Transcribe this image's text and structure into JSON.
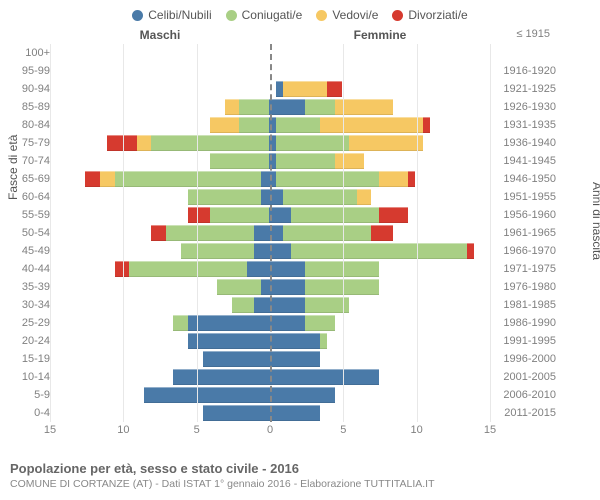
{
  "legend": [
    {
      "label": "Celibi/Nubili",
      "color": "#4a7aa8"
    },
    {
      "label": "Coniugati/e",
      "color": "#a9cf85"
    },
    {
      "label": "Vedovi/e",
      "color": "#f6c863"
    },
    {
      "label": "Divorziati/e",
      "color": "#d63a2f"
    }
  ],
  "header_male": "Maschi",
  "header_female": "Femmine",
  "header_birth_first": "≤ 1915",
  "y_left_title": "Fasce di età",
  "y_right_title": "Anni di nascita",
  "x_ticks": [
    15,
    10,
    5,
    0,
    5,
    10,
    15
  ],
  "xmax": 15,
  "footer_title": "Popolazione per età, sesso e stato civile - 2016",
  "footer_sub": "COMUNE DI CORTANZE (AT) - Dati ISTAT 1° gennaio 2016 - Elaborazione TUTTITALIA.IT",
  "rows": [
    {
      "age": "100+",
      "birth": "≤ 1915",
      "m": [
        0,
        0,
        0,
        0
      ],
      "f": [
        0,
        0,
        0,
        0
      ]
    },
    {
      "age": "95-99",
      "birth": "1916-1920",
      "m": [
        0,
        0,
        0,
        0
      ],
      "f": [
        0,
        0,
        0,
        0
      ]
    },
    {
      "age": "90-94",
      "birth": "1921-1925",
      "m": [
        0,
        0,
        0,
        0
      ],
      "f": [
        0.5,
        0,
        3,
        1
      ]
    },
    {
      "age": "85-89",
      "birth": "1926-1930",
      "m": [
        0.5,
        2,
        1,
        0
      ],
      "f": [
        2,
        2,
        4,
        0
      ]
    },
    {
      "age": "80-84",
      "birth": "1931-1935",
      "m": [
        0.5,
        2,
        2,
        0
      ],
      "f": [
        0,
        3,
        7,
        0.5
      ]
    },
    {
      "age": "75-79",
      "birth": "1936-1940",
      "m": [
        0.5,
        8,
        1,
        2
      ],
      "f": [
        0,
        5,
        5,
        0
      ]
    },
    {
      "age": "70-74",
      "birth": "1941-1945",
      "m": [
        0.5,
        4,
        0,
        0
      ],
      "f": [
        0,
        4,
        2,
        0
      ]
    },
    {
      "age": "65-69",
      "birth": "1946-1950",
      "m": [
        1,
        10,
        1,
        1
      ],
      "f": [
        0,
        7,
        2,
        0.5
      ]
    },
    {
      "age": "60-64",
      "birth": "1951-1955",
      "m": [
        1,
        5,
        0,
        0
      ],
      "f": [
        0.5,
        5,
        1,
        0
      ]
    },
    {
      "age": "55-59",
      "birth": "1956-1960",
      "m": [
        0.5,
        4,
        0,
        1.5
      ],
      "f": [
        1,
        6,
        0,
        2
      ]
    },
    {
      "age": "50-54",
      "birth": "1961-1965",
      "m": [
        1.5,
        6,
        0,
        1
      ],
      "f": [
        0.5,
        6,
        0,
        1.5
      ]
    },
    {
      "age": "45-49",
      "birth": "1966-1970",
      "m": [
        1.5,
        5,
        0,
        0
      ],
      "f": [
        1,
        12,
        0,
        0.5
      ]
    },
    {
      "age": "40-44",
      "birth": "1971-1975",
      "m": [
        2,
        8,
        0,
        1
      ],
      "f": [
        2,
        5,
        0,
        0
      ]
    },
    {
      "age": "35-39",
      "birth": "1976-1980",
      "m": [
        1,
        3,
        0,
        0
      ],
      "f": [
        2,
        5,
        0,
        0
      ]
    },
    {
      "age": "30-34",
      "birth": "1981-1985",
      "m": [
        1.5,
        1.5,
        0,
        0
      ],
      "f": [
        2,
        3,
        0,
        0
      ]
    },
    {
      "age": "25-29",
      "birth": "1986-1990",
      "m": [
        6,
        1,
        0,
        0
      ],
      "f": [
        2,
        2,
        0,
        0
      ]
    },
    {
      "age": "20-24",
      "birth": "1991-1995",
      "m": [
        6,
        0,
        0,
        0
      ],
      "f": [
        3,
        0.5,
        0,
        0
      ]
    },
    {
      "age": "15-19",
      "birth": "1996-2000",
      "m": [
        5,
        0,
        0,
        0
      ],
      "f": [
        3,
        0,
        0,
        0
      ]
    },
    {
      "age": "10-14",
      "birth": "2001-2005",
      "m": [
        7,
        0,
        0,
        0
      ],
      "f": [
        7,
        0,
        0,
        0
      ]
    },
    {
      "age": "5-9",
      "birth": "2006-2010",
      "m": [
        9,
        0,
        0,
        0
      ],
      "f": [
        4,
        0,
        0,
        0
      ]
    },
    {
      "age": "0-4",
      "birth": "2011-2015",
      "m": [
        5,
        0,
        0,
        0
      ],
      "f": [
        3,
        0,
        0,
        0
      ]
    }
  ]
}
